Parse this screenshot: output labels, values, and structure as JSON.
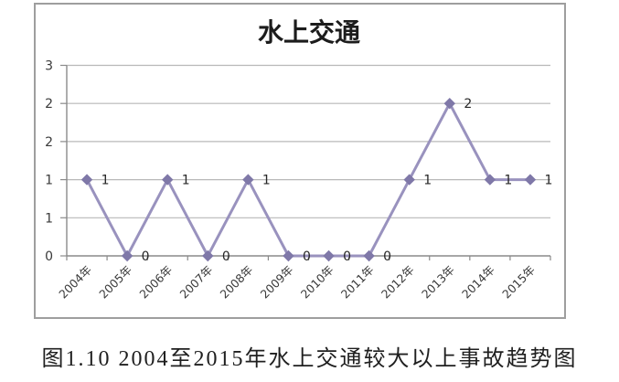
{
  "chart_data": {
    "type": "line",
    "title": "水上交通",
    "categories": [
      "2004年",
      "2005年",
      "2006年",
      "2007年",
      "2008年",
      "2009年",
      "2010年",
      "2011年",
      "2012年",
      "2013年",
      "2014年",
      "2015年"
    ],
    "values": [
      1,
      0,
      1,
      0,
      1,
      0,
      0,
      0,
      1,
      2,
      1,
      1
    ],
    "data_labels": [
      "1",
      "0",
      "1",
      "0",
      "1",
      "0",
      "0",
      "0",
      "1",
      "2",
      "1",
      "1"
    ],
    "xlabel": "",
    "ylabel": "",
    "ylim": [
      0,
      2.5
    ],
    "y_step": 0.5,
    "y_tick_labels_bottom_to_top": [
      "0",
      "1",
      "1",
      "2",
      "2",
      "3"
    ],
    "grid": true,
    "legend": "none",
    "marker": "diamond",
    "colors": {
      "line": "#9992BE",
      "marker": "#7F78A8",
      "gridline": "#b8b8b8",
      "axis": "#8a8a8a",
      "chart_border": "#9e9e9e",
      "background": "#ffffff"
    }
  },
  "caption": "图1.10 2004至2015年水上交通较大以上事故趋势图"
}
